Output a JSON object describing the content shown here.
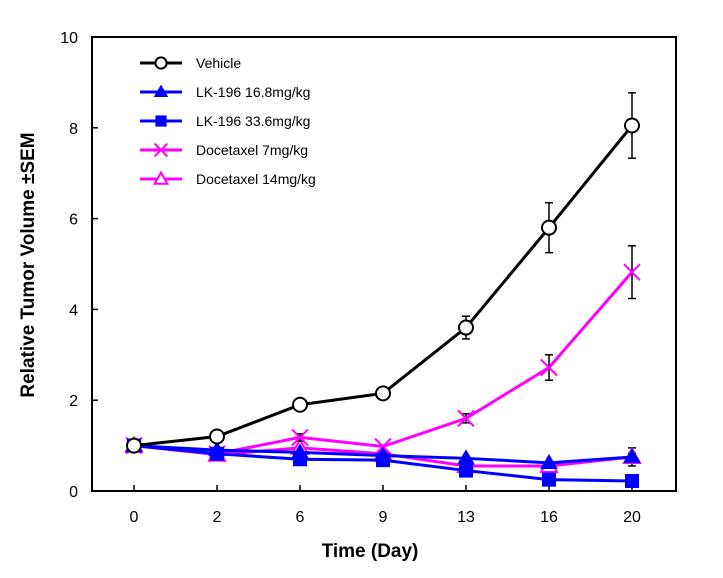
{
  "chart_data": {
    "type": "line",
    "title": "",
    "xlabel": "Time (Day)",
    "ylabel": "Relative Tumor Volume ±SEM",
    "x": [
      "0",
      "2",
      "6",
      "9",
      "13",
      "16",
      "20"
    ],
    "yticks": [
      "0",
      "2",
      "4",
      "6",
      "8",
      "10"
    ],
    "ylim": [
      0,
      10
    ],
    "grid": false,
    "legend_position": "top-left",
    "series": [
      {
        "name": "Vehicle",
        "color": "#000000",
        "marker": "circle-open",
        "values": [
          1.0,
          1.2,
          1.9,
          2.15,
          3.6,
          5.8,
          8.05
        ],
        "errors": [
          0,
          0.08,
          0.08,
          0.1,
          0.25,
          0.55,
          0.72
        ]
      },
      {
        "name": "LK-196  16.8mg/kg",
        "color": "#0000ff",
        "marker": "triangle-filled",
        "values": [
          1.0,
          0.9,
          0.85,
          0.78,
          0.72,
          0.62,
          0.75
        ],
        "errors": [
          0,
          0.04,
          0.04,
          0.04,
          0.05,
          0.05,
          0.08
        ]
      },
      {
        "name": "LK-196  33.6mg/kg",
        "color": "#0000ff",
        "marker": "square-filled",
        "values": [
          1.0,
          0.82,
          0.7,
          0.68,
          0.45,
          0.25,
          0.22
        ],
        "errors": [
          0,
          0.04,
          0.04,
          0.04,
          0.05,
          0.04,
          0.04
        ]
      },
      {
        "name": "Docetaxel   7mg/kg",
        "color": "#ff00ff",
        "marker": "x",
        "values": [
          1.0,
          0.82,
          1.18,
          0.98,
          1.6,
          2.72,
          4.82
        ],
        "errors": [
          0,
          0.05,
          0.08,
          0.06,
          0.1,
          0.28,
          0.58
        ]
      },
      {
        "name": "Docetaxel 14mg/kg",
        "color": "#ff00ff",
        "marker": "triangle-open",
        "values": [
          1.0,
          0.8,
          0.95,
          0.82,
          0.55,
          0.55,
          0.75
        ],
        "errors": [
          0,
          0.04,
          0.05,
          0.04,
          0.05,
          0.05,
          0.2
        ]
      }
    ]
  }
}
